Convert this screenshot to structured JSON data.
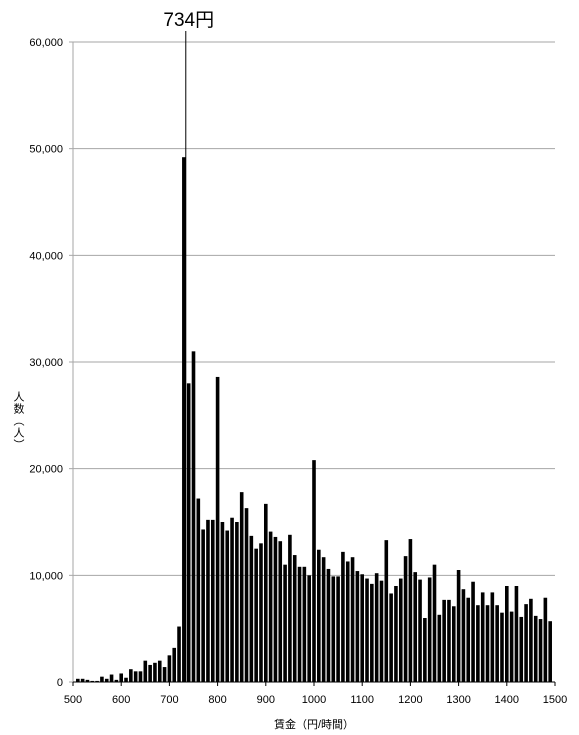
{
  "chart_data": {
    "type": "bar",
    "xlabel": "賃金（円/時間）",
    "ylabel": "人数（人）",
    "xlim": [
      500,
      1500
    ],
    "ylim": [
      0,
      60000
    ],
    "xticks": [
      "500",
      "600",
      "700",
      "800",
      "900",
      "1000",
      "1100",
      "1200",
      "1300",
      "1400",
      "1500"
    ],
    "yticks": [
      "0",
      "10,000",
      "20,000",
      "30,000",
      "40,000",
      "50,000",
      "60,000"
    ],
    "grid": true,
    "x": [
      510,
      520,
      530,
      540,
      550,
      560,
      570,
      580,
      590,
      600,
      610,
      620,
      630,
      640,
      650,
      660,
      670,
      680,
      690,
      700,
      710,
      720,
      730,
      740,
      750,
      760,
      770,
      780,
      790,
      800,
      810,
      820,
      830,
      840,
      850,
      860,
      870,
      880,
      890,
      900,
      910,
      920,
      930,
      940,
      950,
      960,
      970,
      980,
      990,
      1000,
      1010,
      1020,
      1030,
      1040,
      1050,
      1060,
      1070,
      1080,
      1090,
      1100,
      1110,
      1120,
      1130,
      1140,
      1150,
      1160,
      1170,
      1180,
      1190,
      1200,
      1210,
      1220,
      1230,
      1240,
      1250,
      1260,
      1270,
      1280,
      1290,
      1300,
      1310,
      1320,
      1330,
      1340,
      1350,
      1360,
      1370,
      1380,
      1390,
      1400,
      1410,
      1420,
      1430,
      1440,
      1450,
      1460,
      1470,
      1480,
      1490
    ],
    "values": [
      300,
      300,
      200,
      100,
      100,
      500,
      300,
      700,
      200,
      800,
      400,
      1200,
      1000,
      1000,
      2000,
      1600,
      1800,
      2000,
      1400,
      2500,
      3200,
      5200,
      49200,
      28000,
      31000,
      17200,
      14300,
      15200,
      15200,
      28600,
      15000,
      14200,
      15400,
      15000,
      17800,
      16300,
      13700,
      12500,
      13000,
      16700,
      14100,
      13600,
      13200,
      11000,
      13800,
      11900,
      10800,
      10800,
      10000,
      20800,
      12400,
      11700,
      10600,
      9900,
      9900,
      12200,
      11300,
      11700,
      10400,
      10100,
      9700,
      9200,
      10200,
      9500,
      13300,
      8300,
      9000,
      9700,
      11800,
      13400,
      10300,
      9600,
      6000,
      9800,
      11000,
      6300,
      7700,
      7700,
      7100,
      10500,
      8700,
      7900,
      9400,
      7200,
      8400,
      7200,
      8400,
      7200,
      6500,
      9000,
      6600,
      9000,
      6100,
      7300,
      7800,
      6200,
      5900,
      7900,
      5700
    ],
    "annotations": [
      {
        "x": 734,
        "text": "734円"
      }
    ],
    "colors": {
      "bar": "#000000",
      "grid": "#a6a6a6",
      "axis": "#000000",
      "annotation_line": "#000000"
    }
  }
}
